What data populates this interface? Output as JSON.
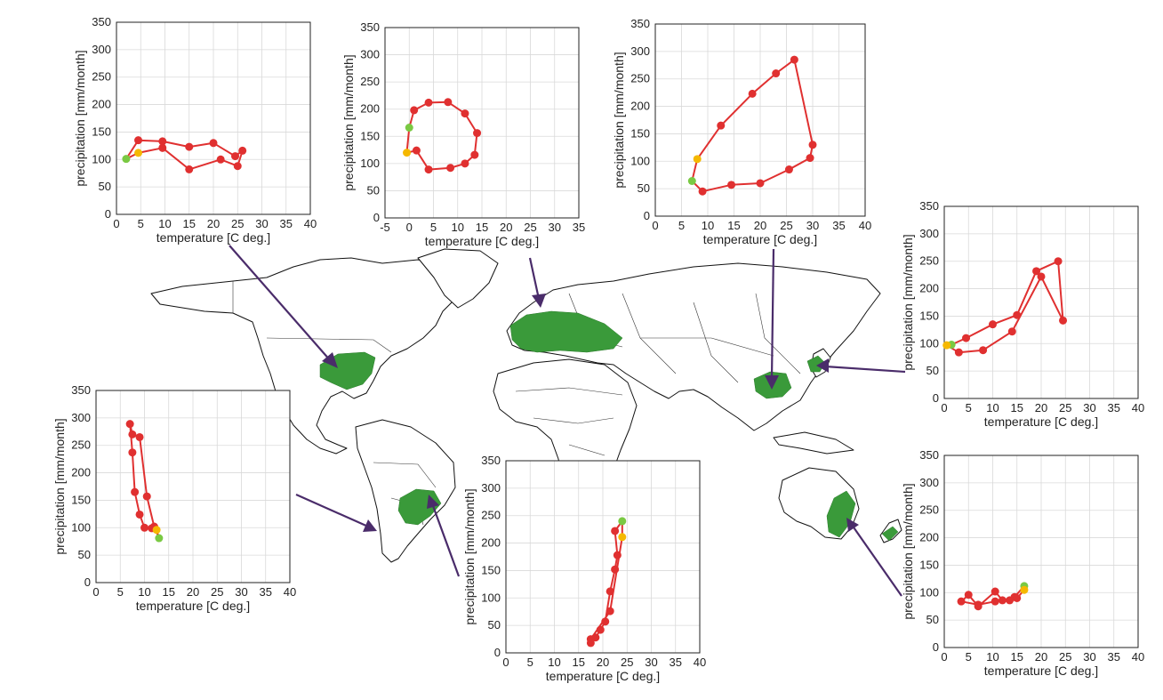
{
  "colors": {
    "series_line": "#e03030",
    "point": "#e03030",
    "start_point": "#7ac943",
    "end_point": "#f5b800",
    "region_fill": "#3a9a3a",
    "arrow": "#4a2c6a",
    "grid": "#d9d9d9"
  },
  "chart_data": [
    {
      "id": "north-america",
      "type": "line",
      "xlabel": "temperature [C deg.]",
      "ylabel": "precipitation [mm/month]",
      "xlim": [
        0,
        40
      ],
      "ylim": [
        0,
        350
      ],
      "xticks": [
        "0",
        "5",
        "10",
        "15",
        "20",
        "25",
        "30",
        "35",
        "40"
      ],
      "yticks": [
        "0",
        "50",
        "100",
        "150",
        "200",
        "250",
        "300",
        "350"
      ],
      "grid": true,
      "points": [
        [
          2,
          101
        ],
        [
          4.5,
          135
        ],
        [
          9.5,
          133
        ],
        [
          15,
          123
        ],
        [
          20,
          130
        ],
        [
          24.5,
          106
        ],
        [
          26,
          116
        ],
        [
          25,
          88
        ],
        [
          21.5,
          100
        ],
        [
          15,
          82
        ],
        [
          9.5,
          121
        ],
        [
          4.5,
          112
        ]
      ]
    },
    {
      "id": "europe",
      "type": "line",
      "xlabel": "temperature [C deg.]",
      "ylabel": "precipitation [mm/month]",
      "xlim": [
        -5,
        35
      ],
      "ylim": [
        0,
        350
      ],
      "xticks": [
        "-5",
        "0",
        "5",
        "10",
        "15",
        "20",
        "25",
        "30",
        "35"
      ],
      "yticks": [
        "0",
        "50",
        "100",
        "150",
        "200",
        "250",
        "300",
        "350"
      ],
      "grid": true,
      "points": [
        [
          0,
          166
        ],
        [
          1,
          198
        ],
        [
          4,
          212
        ],
        [
          8,
          213
        ],
        [
          11.5,
          192
        ],
        [
          14,
          156
        ],
        [
          13.5,
          116
        ],
        [
          11.5,
          100
        ],
        [
          8.5,
          92
        ],
        [
          4,
          89
        ],
        [
          1.5,
          124
        ],
        [
          -0.5,
          120
        ]
      ]
    },
    {
      "id": "east-china",
      "type": "line",
      "xlabel": "temperature [C deg.]",
      "ylabel": "precipitation [mm/month]",
      "xlim": [
        0,
        40
      ],
      "ylim": [
        0,
        350
      ],
      "xticks": [
        "0",
        "5",
        "10",
        "15",
        "20",
        "25",
        "30",
        "35",
        "40"
      ],
      "yticks": [
        "0",
        "50",
        "100",
        "150",
        "200",
        "250",
        "300",
        "350"
      ],
      "grid": true,
      "points": [
        [
          7,
          64
        ],
        [
          9,
          45
        ],
        [
          14.5,
          57
        ],
        [
          20,
          60
        ],
        [
          25.5,
          85
        ],
        [
          29.5,
          106
        ],
        [
          30,
          130
        ],
        [
          26.5,
          285
        ],
        [
          23,
          260
        ],
        [
          18.5,
          223
        ],
        [
          12.5,
          165
        ],
        [
          8,
          104
        ]
      ]
    },
    {
      "id": "japan",
      "type": "line",
      "xlabel": "temperature [C deg.]",
      "ylabel": "precipitation [mm/month]",
      "xlim": [
        0,
        40
      ],
      "ylim": [
        0,
        350
      ],
      "xticks": [
        "0",
        "5",
        "10",
        "15",
        "20",
        "25",
        "30",
        "35",
        "40"
      ],
      "yticks": [
        "0",
        "50",
        "100",
        "150",
        "200",
        "250",
        "300",
        "350"
      ],
      "grid": true,
      "points": [
        [
          1.5,
          98
        ],
        [
          4.5,
          110
        ],
        [
          10,
          135
        ],
        [
          15,
          152
        ],
        [
          19,
          232
        ],
        [
          23.5,
          250
        ],
        [
          24.5,
          142
        ],
        [
          20,
          222
        ],
        [
          14,
          122
        ],
        [
          8,
          88
        ],
        [
          3,
          84
        ],
        [
          0.5,
          97
        ]
      ]
    },
    {
      "id": "south-america",
      "type": "line",
      "xlabel": "temperature [C deg.]",
      "ylabel": "precipitation [mm/month]",
      "xlim": [
        0,
        40
      ],
      "ylim": [
        0,
        350
      ],
      "xticks": [
        "0",
        "5",
        "10",
        "15",
        "20",
        "25",
        "30",
        "35",
        "40"
      ],
      "yticks": [
        "0",
        "50",
        "100",
        "150",
        "200",
        "250",
        "300",
        "350"
      ],
      "grid": true,
      "points": [
        [
          13,
          81
        ],
        [
          12,
          102
        ],
        [
          10.5,
          157
        ],
        [
          9,
          265
        ],
        [
          7.5,
          270
        ],
        [
          7,
          289
        ],
        [
          7.5,
          237
        ],
        [
          8,
          165
        ],
        [
          9,
          124
        ],
        [
          10,
          100
        ],
        [
          11.5,
          99
        ],
        [
          12.5,
          96
        ]
      ]
    },
    {
      "id": "south-africa",
      "type": "line",
      "xlabel": "temperature [C deg.]",
      "ylabel": "precipitation [mm/month]",
      "xlim": [
        0,
        40
      ],
      "ylim": [
        0,
        350
      ],
      "xticks": [
        "0",
        "5",
        "10",
        "15",
        "20",
        "25",
        "30",
        "35",
        "40"
      ],
      "yticks": [
        "0",
        "50",
        "100",
        "150",
        "200",
        "250",
        "300",
        "350"
      ],
      "grid": true,
      "points": [
        [
          24,
          240
        ],
        [
          22.5,
          222
        ],
        [
          23,
          178
        ],
        [
          22.5,
          152
        ],
        [
          21.5,
          112
        ],
        [
          20.5,
          57
        ],
        [
          19.5,
          42
        ],
        [
          18.5,
          28
        ],
        [
          17.5,
          18
        ],
        [
          17.5,
          25
        ],
        [
          21.5,
          76
        ],
        [
          24,
          211
        ]
      ]
    },
    {
      "id": "australia",
      "type": "line",
      "xlabel": "temperature [C deg.]",
      "ylabel": "precipitation [mm/month]",
      "xlim": [
        0,
        40
      ],
      "ylim": [
        0,
        350
      ],
      "xticks": [
        "0",
        "5",
        "10",
        "15",
        "20",
        "25",
        "30",
        "35",
        "40"
      ],
      "yticks": [
        "0",
        "50",
        "100",
        "150",
        "200",
        "250",
        "300",
        "350"
      ],
      "grid": true,
      "points": [
        [
          16.5,
          112
        ],
        [
          14.5,
          92
        ],
        [
          12,
          86
        ],
        [
          10.5,
          102
        ],
        [
          7,
          75
        ],
        [
          5,
          96
        ],
        [
          3.5,
          84
        ],
        [
          7,
          78
        ],
        [
          10.5,
          84
        ],
        [
          13.5,
          86
        ],
        [
          15,
          90
        ],
        [
          16.5,
          105
        ]
      ]
    }
  ]
}
